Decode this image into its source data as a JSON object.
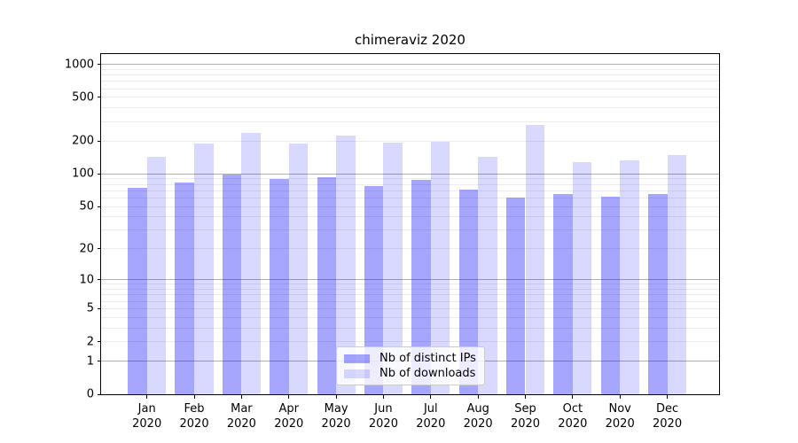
{
  "chart_data": {
    "type": "bar",
    "title": "chimeraviz 2020",
    "categories": [
      "Jan",
      "Feb",
      "Mar",
      "Apr",
      "May",
      "Jun",
      "Jul",
      "Aug",
      "Sep",
      "Oct",
      "Nov",
      "Dec"
    ],
    "category_year_line": "2020",
    "series": [
      {
        "name": "Nb of distinct IPs",
        "key": "distinct-ips",
        "color": "rgba(0,0,255,0.35)",
        "values": [
          75,
          83,
          98,
          90,
          93,
          77,
          88,
          72,
          61,
          65,
          62,
          65
        ]
      },
      {
        "name": "Nb of downloads",
        "key": "downloads",
        "color": "rgba(0,0,255,0.15)",
        "values": [
          142,
          191,
          238,
          190,
          225,
          195,
          197,
          144,
          282,
          127,
          132,
          148
        ]
      }
    ],
    "yscale": "log1p",
    "ylim": [
      0,
      1240
    ],
    "ytick_values": [
      0,
      1,
      2,
      5,
      10,
      20,
      50,
      100,
      200,
      500,
      1000
    ],
    "ytick_labels": [
      "0",
      "1",
      "2",
      "5",
      "10",
      "20",
      "50",
      "100",
      "200",
      "500",
      "1000"
    ],
    "major_grid_values": [
      1,
      10,
      100,
      1000
    ],
    "minor_grid_values": [
      2,
      3,
      4,
      5,
      6,
      7,
      8,
      9,
      20,
      30,
      40,
      50,
      60,
      70,
      80,
      90,
      200,
      300,
      400,
      500,
      600,
      700,
      800,
      900
    ],
    "legend": {
      "location": "lower center"
    },
    "grid": true,
    "colors": {
      "bar_distinct_ips": "rgba(0,0,255,0.35)",
      "bar_downloads": "rgba(0,0,255,0.15)",
      "major_grid": "#b0b0b0",
      "minor_grid": "#ececec",
      "axis": "#000000",
      "text": "#000000",
      "legend_border": "#cccccc",
      "legend_bg": "rgba(255,255,255,0.8)",
      "background": "#ffffff"
    }
  }
}
